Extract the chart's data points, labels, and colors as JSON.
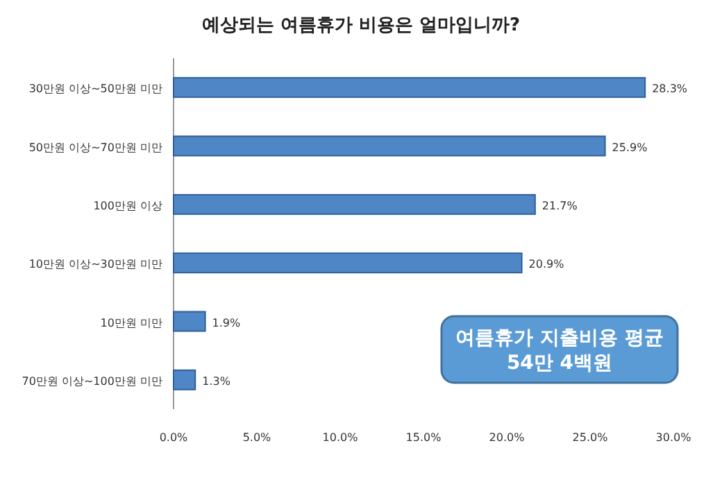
{
  "chart_data": {
    "type": "bar",
    "orientation": "horizontal",
    "title": "예상되는 여름휴가 비용은 얼마입니까?",
    "categories": [
      "30만원 이상~50만원 미만",
      "50만원 이상~70만원 미만",
      "100만원 이상",
      "10만원 이상~30만원 미만",
      "10만원 미만",
      "70만원 이상~100만원 미만"
    ],
    "values": [
      28.3,
      25.9,
      21.7,
      20.9,
      1.9,
      1.3
    ],
    "value_labels": [
      "28.3%",
      "25.9%",
      "21.7%",
      "20.9%",
      "1.9%",
      "1.3%"
    ],
    "color": "#4f86c6",
    "xlim": [
      0,
      30
    ],
    "xticks": [
      {
        "value": 0,
        "label": "0.0%"
      },
      {
        "value": 5,
        "label": "5.0%"
      },
      {
        "value": 10,
        "label": "10.0%"
      },
      {
        "value": 15,
        "label": "15.0%"
      },
      {
        "value": 20,
        "label": "20.0%"
      },
      {
        "value": 25,
        "label": "25.0%"
      },
      {
        "value": 30,
        "label": "30.0%"
      }
    ],
    "annotations": [
      "여름휴가 지출비용 평균 54만 4백원"
    ]
  }
}
